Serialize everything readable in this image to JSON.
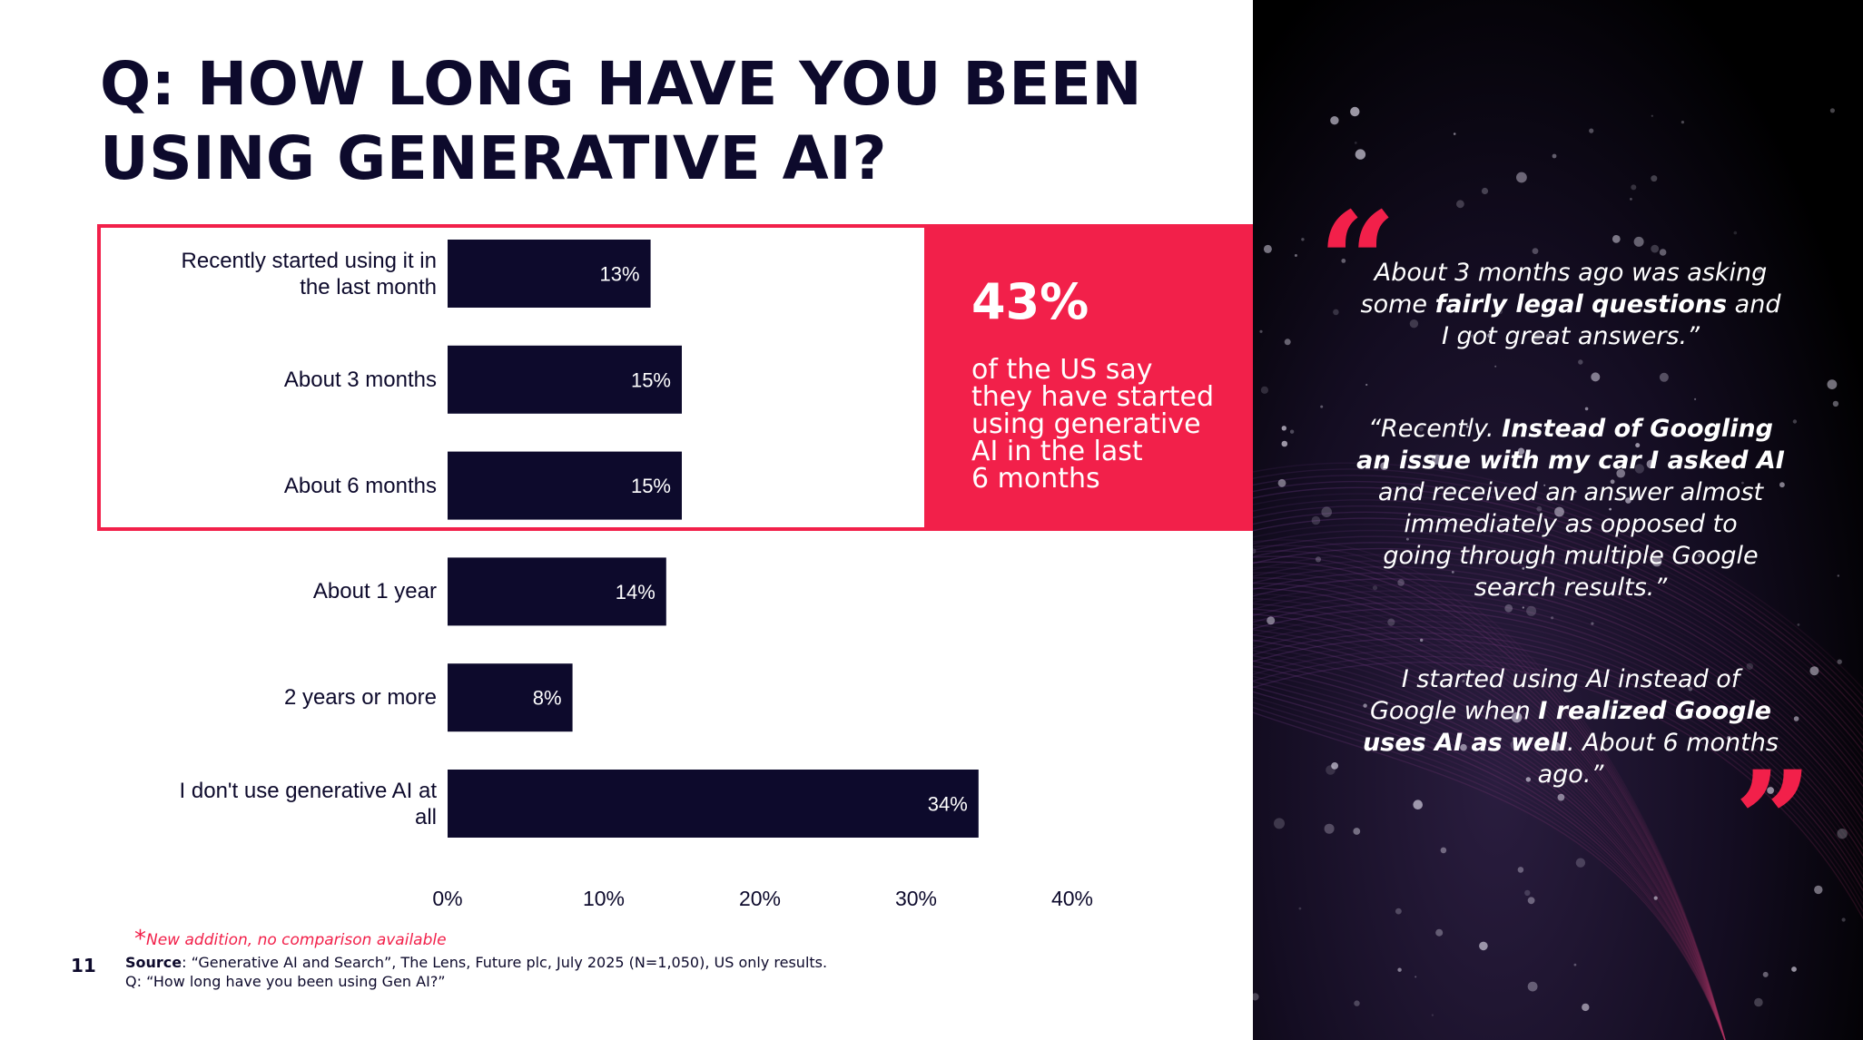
{
  "title_lines": [
    "Q: HOW LONG HAVE YOU BEEN",
    "USING GENERATIVE AI?"
  ],
  "callout": {
    "big": "43%",
    "lines": [
      "of the US say",
      "they have started",
      "using generative",
      "AI in the last",
      "6 months"
    ]
  },
  "chart_data": {
    "type": "bar",
    "orientation": "horizontal",
    "categories": [
      [
        "Recently started using it in",
        "the last month"
      ],
      [
        "About 3 months"
      ],
      [
        "About 6 months"
      ],
      [
        "About 1 year"
      ],
      [
        "2 years or more"
      ],
      [
        "I don't use generative AI at",
        "all"
      ]
    ],
    "values": [
      13,
      15,
      15,
      14,
      8,
      34
    ],
    "value_labels": [
      "13%",
      "15%",
      "15%",
      "14%",
      "8%",
      "34%"
    ],
    "xlim": [
      0,
      40
    ],
    "xticks": [
      "0%",
      "10%",
      "20%",
      "30%",
      "40%"
    ],
    "grid": false,
    "bar_color": "#0d0a2c",
    "highlight_color": "#f2204a"
  },
  "quotes": [
    [
      {
        "t": "About 3 months ago was asking"
      },
      {
        "t": "some ",
        "b": "fairly legal questions",
        "a": " and"
      },
      {
        "t": "I got great answers.”"
      }
    ],
    [
      {
        "t": "“Recently. ",
        "b": "Instead of Googling"
      },
      {
        "b": "an issue with my car I asked AI"
      },
      {
        "t": "and received an answer almost"
      },
      {
        "t": "immediately as opposed to"
      },
      {
        "t": "going through multiple Google"
      },
      {
        "t": "search results.”"
      }
    ],
    [
      {
        "t": "I started using AI instead of"
      },
      {
        "t": "Google when ",
        "b": "I realized Google"
      },
      {
        "b": "uses AI as well",
        "a": ". About 6 months"
      },
      {
        "t": "ago.”"
      }
    ]
  ],
  "quote_open": "“",
  "quote_close": "”",
  "footnote": "New addition, no comparison available",
  "footnote_star": "*",
  "source_label": "Source",
  "source_text": ": “Generative AI and Search”, The Lens, Future plc, July 2025 (N=1,050), US only results.",
  "source_q": "Q: “How long have you been using Gen AI?”",
  "page_number": "11"
}
